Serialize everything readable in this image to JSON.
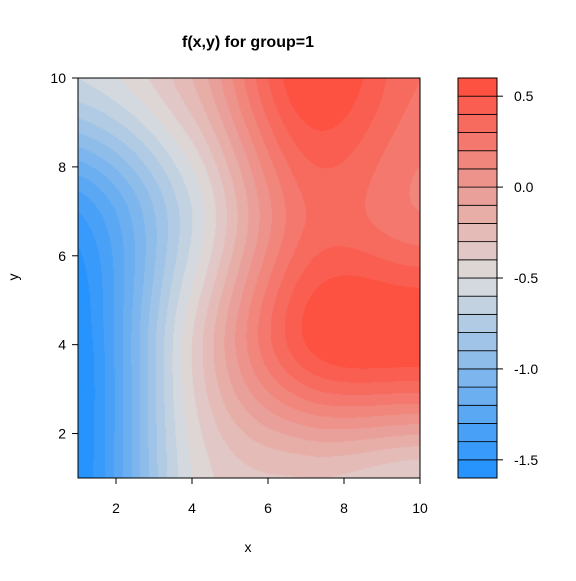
{
  "chart_data": {
    "type": "heatmap",
    "subtype": "filled-contour",
    "title": "f(x,y) for group=1",
    "xlabel": "x",
    "ylabel": "y",
    "xlim": [
      1,
      10
    ],
    "ylim": [
      1,
      10
    ],
    "x_ticks": [
      2,
      4,
      6,
      8,
      10
    ],
    "y_ticks": [
      2,
      4,
      6,
      8,
      10
    ],
    "colorbar": {
      "range": [
        -1.6,
        0.6
      ],
      "levels": [
        -1.6,
        -1.5,
        -1.4,
        -1.3,
        -1.2,
        -1.1,
        -1.0,
        -0.9,
        -0.8,
        -0.7,
        -0.6,
        -0.5,
        -0.4,
        -0.3,
        -0.2,
        -0.1,
        0.0,
        0.1,
        0.2,
        0.3,
        0.4,
        0.5,
        0.6
      ],
      "ticks": [
        -1.5,
        -1.0,
        -0.5,
        0.0,
        0.5
      ],
      "tick_labels": [
        "-1.5",
        "-1.0",
        "-0.5",
        "0.0",
        "0.5"
      ],
      "low_color": "#1e90ff",
      "mid_color": "#dcdcdc",
      "high_color": "#ff4a3a"
    },
    "surface_x": [
      1,
      4,
      7,
      10
    ],
    "surface_y": [
      1,
      4,
      7,
      10
    ],
    "surface_z": [
      [
        -1.6,
        -0.5,
        -0.3,
        -0.4
      ],
      [
        -1.6,
        -0.4,
        0.5,
        0.6
      ],
      [
        -1.4,
        -0.6,
        0.3,
        0.2
      ],
      [
        -0.6,
        -0.2,
        0.6,
        0.3
      ]
    ],
    "grid": false,
    "legend": "right colorbar"
  }
}
